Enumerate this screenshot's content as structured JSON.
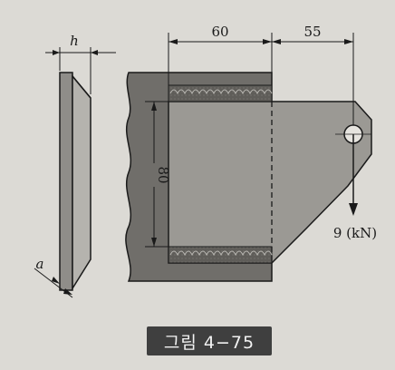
{
  "figure": {
    "dim_width_top": "60",
    "dim_overhang": "55",
    "dim_height": "80",
    "dim_h": "h",
    "dim_a": "a",
    "load": "9 (kN)"
  },
  "caption": "그림 4−75",
  "colors": {
    "plate_dark": "#6f6d69",
    "plate_light": "#9a9893",
    "line": "#1a1a1a",
    "caption_bg": "#3f3f3f"
  }
}
